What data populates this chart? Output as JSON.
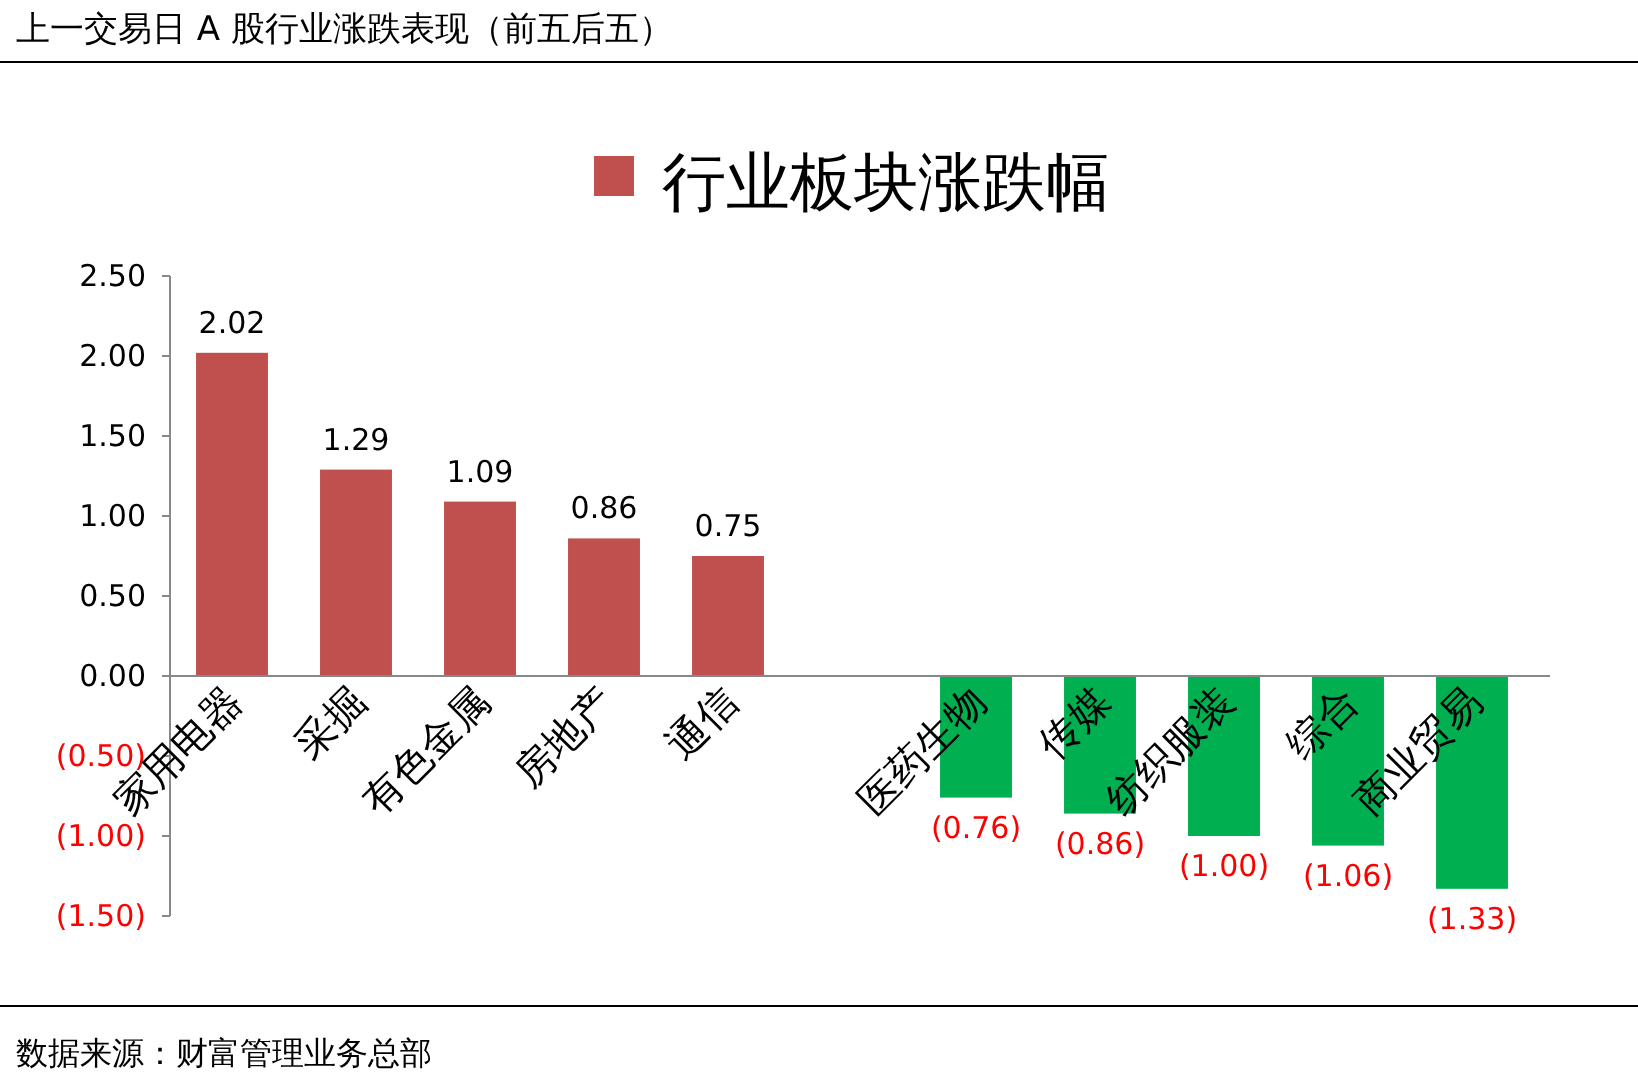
{
  "chart_data": {
    "type": "bar",
    "title": "上一交易日 A 股行业涨跌表现（前五后五）",
    "categories": [
      "家用电器",
      "采掘",
      "有色金属",
      "房地产",
      "通信",
      null,
      "医药生物",
      "传媒",
      "纺织服装",
      "综合",
      "商业贸易"
    ],
    "series": [
      {
        "name": "行业板块涨跌幅",
        "color": "#c0504d",
        "colors": [
          "#c0504d",
          "#c0504d",
          "#c0504d",
          "#c0504d",
          "#c0504d",
          null,
          "#00b050",
          "#00b050",
          "#00b050",
          "#00b050",
          "#00b050"
        ],
        "values": [
          2.02,
          1.29,
          1.09,
          0.86,
          0.75,
          null,
          -0.76,
          -0.86,
          -1.0,
          -1.06,
          -1.33
        ],
        "value_labels": [
          "2.02",
          "1.29",
          "1.09",
          "0.86",
          "0.75",
          null,
          "(0.76)",
          "(0.86)",
          "(1.00)",
          "(1.06)",
          "(1.33)"
        ]
      }
    ],
    "ylim": [
      -1.5,
      2.5
    ],
    "yticks": [
      {
        "value": -1.5,
        "label": "(1.50)"
      },
      {
        "value": -1.0,
        "label": "(1.00)"
      },
      {
        "value": -0.5,
        "label": "(0.50)"
      },
      {
        "value": 0,
        "label": "0.00"
      },
      {
        "value": 0.5,
        "label": "0.50"
      },
      {
        "value": 1.0,
        "label": "1.00"
      },
      {
        "value": 1.5,
        "label": "1.50"
      },
      {
        "value": 2.0,
        "label": "2.00"
      },
      {
        "value": 2.5,
        "label": "2.50"
      }
    ],
    "legend": "top",
    "annotations": [
      "数据来源：财富管理业务总部"
    ]
  }
}
